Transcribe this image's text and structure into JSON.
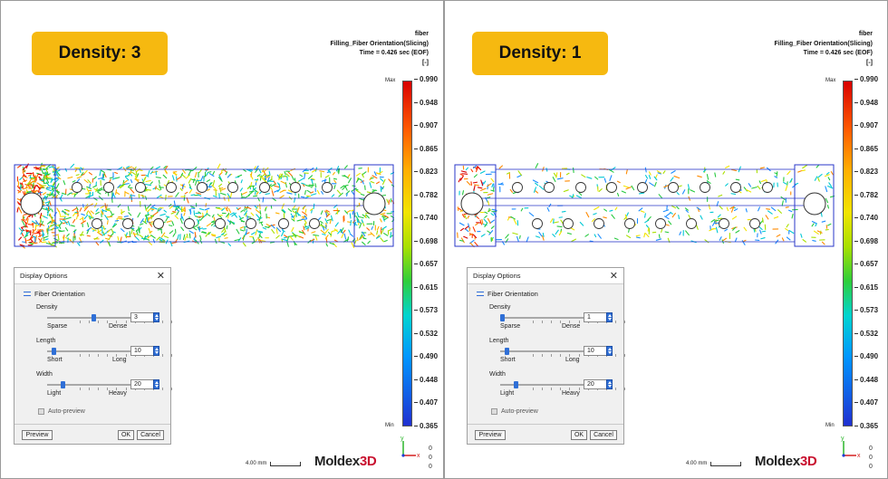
{
  "panels": [
    {
      "badge": "Density: 3",
      "header": {
        "line1": "fiber",
        "line2": "Filling_Fiber Orientation(Slicing)",
        "line3": "Time = 0.426 sec (EOF)",
        "unit": "[-]"
      },
      "legend": {
        "max_label": "Max",
        "min_label": "Min",
        "ticks": [
          "0.990",
          "0.948",
          "0.907",
          "0.865",
          "0.823",
          "0.782",
          "0.740",
          "0.698",
          "0.657",
          "0.615",
          "0.573",
          "0.532",
          "0.490",
          "0.448",
          "0.407",
          "0.365"
        ]
      },
      "dialog": {
        "title": "Display Options",
        "close": "✕",
        "section": "Fiber Orientation",
        "density": {
          "label": "Density",
          "left": "Sparse",
          "right": "Dense",
          "value": "3",
          "fraction": 0.5
        },
        "length": {
          "label": "Length",
          "left": "Short",
          "right": "Long",
          "value": "10",
          "fraction": 0.05
        },
        "width": {
          "label": "Width",
          "left": "Light",
          "right": "Heavy",
          "value": "20",
          "fraction": 0.15
        },
        "auto_preview": "Auto-preview",
        "preview_btn": "Preview",
        "ok_btn": "OK",
        "cancel_btn": "Cancel"
      },
      "fiber_density": 3,
      "scale_label": "4.00 mm",
      "logo": {
        "a": "Moldex",
        "b": "3D"
      },
      "axes": {
        "y": "y",
        "x": "x"
      },
      "coords": [
        "0",
        "0",
        "0"
      ]
    },
    {
      "badge": "Density: 1",
      "header": {
        "line1": "fiber",
        "line2": "Filling_Fiber Orientation(Slicing)",
        "line3": "Time = 0.426 sec (EOF)",
        "unit": "[-]"
      },
      "legend": {
        "max_label": "Max",
        "min_label": "Min",
        "ticks": [
          "0.990",
          "0.948",
          "0.907",
          "0.865",
          "0.823",
          "0.782",
          "0.740",
          "0.698",
          "0.657",
          "0.615",
          "0.573",
          "0.532",
          "0.490",
          "0.448",
          "0.407",
          "0.365"
        ]
      },
      "dialog": {
        "title": "Display Options",
        "close": "✕",
        "section": "Fiber Orientation",
        "density": {
          "label": "Density",
          "left": "Sparse",
          "right": "Dense",
          "value": "1",
          "fraction": 0.0
        },
        "length": {
          "label": "Length",
          "left": "Short",
          "right": "Long",
          "value": "10",
          "fraction": 0.05
        },
        "width": {
          "label": "Width",
          "left": "Light",
          "right": "Heavy",
          "value": "20",
          "fraction": 0.15
        },
        "auto_preview": "Auto-preview",
        "preview_btn": "Preview",
        "ok_btn": "OK",
        "cancel_btn": "Cancel"
      },
      "fiber_density": 1,
      "scale_label": "4.00 mm",
      "logo": {
        "a": "Moldex",
        "b": "3D"
      },
      "axes": {
        "y": "y",
        "x": "x"
      },
      "coords": [
        "0",
        "0",
        "0"
      ]
    }
  ]
}
